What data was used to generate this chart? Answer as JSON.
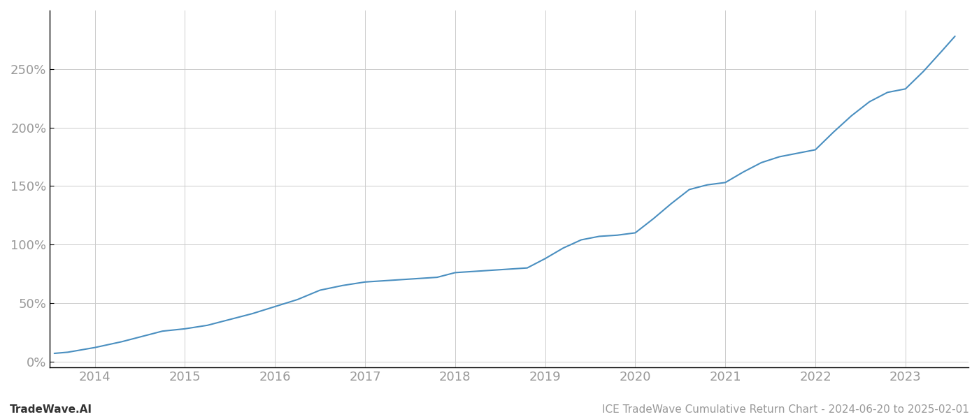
{
  "title": "ICE TradeWave Cumulative Return Chart - 2024-06-20 to 2025-02-01",
  "watermark": "TradeWave.AI",
  "line_color": "#4a8fc0",
  "line_width": 1.5,
  "background_color": "#ffffff",
  "grid_color": "#cccccc",
  "x_years": [
    2014,
    2015,
    2016,
    2017,
    2018,
    2019,
    2020,
    2021,
    2022,
    2023
  ],
  "x_data": [
    2013.55,
    2013.7,
    2014.0,
    2014.3,
    2014.5,
    2014.75,
    2015.0,
    2015.25,
    2015.5,
    2015.75,
    2016.0,
    2016.25,
    2016.5,
    2016.75,
    2017.0,
    2017.2,
    2017.4,
    2017.6,
    2017.8,
    2018.0,
    2018.2,
    2018.4,
    2018.6,
    2018.8,
    2019.0,
    2019.2,
    2019.4,
    2019.6,
    2019.8,
    2020.0,
    2020.2,
    2020.4,
    2020.6,
    2020.8,
    2021.0,
    2021.2,
    2021.4,
    2021.6,
    2021.8,
    2022.0,
    2022.2,
    2022.4,
    2022.6,
    2022.8,
    2023.0,
    2023.2,
    2023.4,
    2023.55
  ],
  "y_data": [
    7,
    8,
    12,
    17,
    21,
    26,
    28,
    31,
    36,
    41,
    47,
    53,
    61,
    65,
    68,
    69,
    70,
    71,
    72,
    76,
    77,
    78,
    79,
    80,
    88,
    97,
    104,
    107,
    108,
    110,
    122,
    135,
    147,
    151,
    153,
    162,
    170,
    175,
    178,
    181,
    196,
    210,
    222,
    230,
    233,
    248,
    265,
    278
  ],
  "ylim": [
    -5,
    300
  ],
  "yticks": [
    0,
    50,
    100,
    150,
    200,
    250
  ],
  "ytick_labels": [
    "0%",
    "50%",
    "100%",
    "150%",
    "200%",
    "250%"
  ],
  "xlim": [
    2013.5,
    2023.7
  ],
  "tick_color": "#999999",
  "tick_fontsize": 13,
  "footer_fontsize": 11,
  "spine_color": "#000000"
}
